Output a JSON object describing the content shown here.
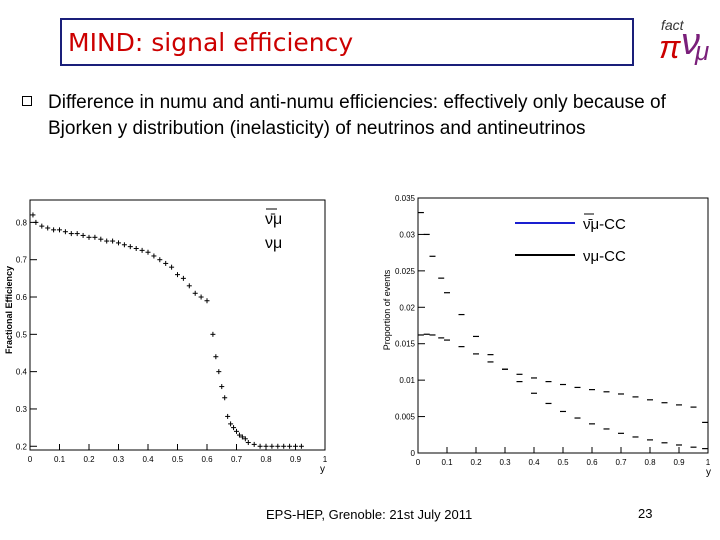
{
  "slide": {
    "title": "MIND: signal efficiency",
    "bullet": "Difference in numu and anti-numu efficiencies: effectively only because of Bjorken y distribution (inelasticity) of neutrinos and antineutrinos",
    "footer": "EPS-HEP, Grenoble: 21st July 2011",
    "page_number": "23",
    "logo_text": "fact",
    "colors": {
      "title": "#cc0000",
      "frame": "#1a1f7a",
      "antinu_line": "#1a1fd0",
      "nu_line": "#000000"
    }
  },
  "chart_data": [
    {
      "type": "scatter",
      "title": "",
      "xlabel": "y",
      "ylabel": "Fractional Efficiency",
      "xlim": [
        0,
        1
      ],
      "ylim": [
        0.19,
        0.86
      ],
      "xticks": [
        "0",
        "0.1",
        "0.2",
        "0.3",
        "0.4",
        "0.5",
        "0.6",
        "0.7",
        "0.8",
        "0.9",
        "1"
      ],
      "yticks": [
        "0.2",
        "0.3",
        "0.4",
        "0.5",
        "0.6",
        "0.7",
        "0.8"
      ],
      "legend_labels": [
        "ν̄μ",
        "νμ"
      ],
      "x": [
        0.01,
        0.02,
        0.04,
        0.06,
        0.08,
        0.1,
        0.12,
        0.14,
        0.16,
        0.18,
        0.2,
        0.22,
        0.24,
        0.26,
        0.28,
        0.3,
        0.32,
        0.34,
        0.36,
        0.38,
        0.4,
        0.42,
        0.44,
        0.46,
        0.48,
        0.5,
        0.52,
        0.54,
        0.56,
        0.58,
        0.6,
        0.62,
        0.63,
        0.64,
        0.65,
        0.66,
        0.67,
        0.68,
        0.69,
        0.7,
        0.71,
        0.72,
        0.73,
        0.74,
        0.76,
        0.78,
        0.8,
        0.82,
        0.84,
        0.86,
        0.88,
        0.9,
        0.92
      ],
      "values": [
        0.82,
        0.8,
        0.79,
        0.785,
        0.78,
        0.78,
        0.775,
        0.77,
        0.77,
        0.765,
        0.76,
        0.76,
        0.755,
        0.75,
        0.75,
        0.745,
        0.74,
        0.735,
        0.73,
        0.725,
        0.72,
        0.71,
        0.7,
        0.69,
        0.68,
        0.66,
        0.65,
        0.63,
        0.61,
        0.6,
        0.59,
        0.5,
        0.44,
        0.4,
        0.36,
        0.33,
        0.28,
        0.26,
        0.25,
        0.24,
        0.23,
        0.225,
        0.22,
        0.21,
        0.205,
        0.2,
        0.2,
        0.2,
        0.2,
        0.2,
        0.2,
        0.2,
        0.2
      ]
    },
    {
      "type": "line",
      "title": "",
      "xlabel": "y",
      "ylabel": "Proportion of events",
      "xlim": [
        0,
        1
      ],
      "ylim": [
        0,
        0.035
      ],
      "xticks": [
        "0",
        "0.1",
        "0.2",
        "0.3",
        "0.4",
        "0.5",
        "0.6",
        "0.7",
        "0.8",
        "0.9",
        "1"
      ],
      "yticks": [
        "0",
        "0.005",
        "0.01",
        "0.015",
        "0.02",
        "0.025",
        "0.03",
        "0.035"
      ],
      "legend": "top-right",
      "series": [
        {
          "name": "ν̄μ-CC",
          "x": [
            0.01,
            0.03,
            0.05,
            0.08,
            0.1,
            0.15,
            0.2,
            0.25,
            0.3,
            0.35,
            0.4,
            0.45,
            0.5,
            0.55,
            0.6,
            0.65,
            0.7,
            0.75,
            0.8,
            0.85,
            0.9,
            0.95,
            0.99
          ],
          "values": [
            0.033,
            0.03,
            0.027,
            0.024,
            0.022,
            0.019,
            0.016,
            0.0135,
            0.0115,
            0.0098,
            0.0082,
            0.0068,
            0.0057,
            0.0048,
            0.004,
            0.0033,
            0.0027,
            0.0022,
            0.0018,
            0.0014,
            0.0011,
            0.0008,
            0.0006
          ]
        },
        {
          "name": "νμ-CC",
          "x": [
            0.01,
            0.03,
            0.05,
            0.08,
            0.1,
            0.15,
            0.2,
            0.25,
            0.3,
            0.35,
            0.4,
            0.45,
            0.5,
            0.55,
            0.6,
            0.65,
            0.7,
            0.75,
            0.8,
            0.85,
            0.9,
            0.95,
            0.99
          ],
          "values": [
            0.0162,
            0.0163,
            0.0162,
            0.0158,
            0.0155,
            0.0146,
            0.0136,
            0.0125,
            0.0115,
            0.0108,
            0.0103,
            0.0098,
            0.0094,
            0.009,
            0.0087,
            0.0084,
            0.0081,
            0.0077,
            0.0073,
            0.0069,
            0.0066,
            0.0063,
            0.0042
          ]
        }
      ]
    }
  ]
}
